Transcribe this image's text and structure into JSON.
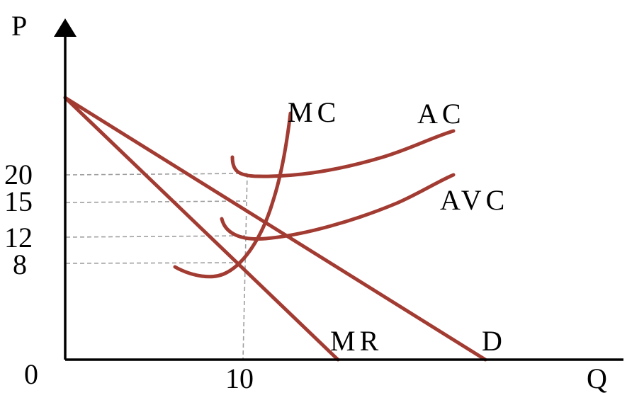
{
  "axes": {
    "y_label": "P",
    "x_label": "Q",
    "origin_label": "0"
  },
  "ticks": {
    "y": [
      "20",
      "15",
      "12",
      "8"
    ],
    "x": [
      "10"
    ]
  },
  "curves": {
    "mc": "MC",
    "ac": "AC",
    "avc": "AVC",
    "mr": "MR",
    "d": "D"
  },
  "colors": {
    "curve": "#a23b32",
    "axis": "#000000",
    "guide": "#9e9e9e"
  }
}
